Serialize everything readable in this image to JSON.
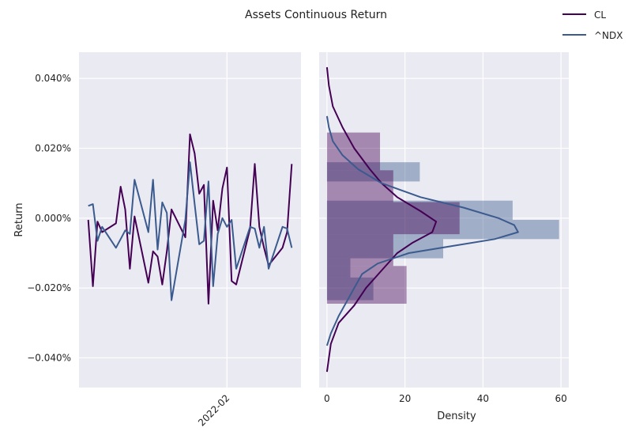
{
  "chart_data": {
    "title": "Assets Continuous Return",
    "legend": {
      "placement": "top-right",
      "entries": [
        {
          "label": "CL",
          "color": "#440154"
        },
        {
          "label": "^NDX",
          "color": "#3b5b8e"
        }
      ]
    },
    "colors": {
      "axes_bg": "#eaeaf2",
      "grid": "#ffffff",
      "CL": "#440154",
      "NDX": "#3b5b8e"
    },
    "charts": [
      {
        "type": "line",
        "xlabel": "",
        "ylabel": "Return",
        "x_tick_labels": [
          {
            "label": "2022-02",
            "index": 30
          }
        ],
        "y_ticks": [
          {
            "value": 0.04,
            "label": "0.040%"
          },
          {
            "value": 0.02,
            "label": "0.020%"
          },
          {
            "value": 0.0,
            "label": "0.000%"
          },
          {
            "value": -0.02,
            "label": "−0.020%"
          },
          {
            "value": -0.04,
            "label": "−0.040%"
          }
        ],
        "ylim": [
          -0.0485,
          0.0475
        ],
        "grid": true,
        "x_index_range": [
          -2,
          46
        ],
        "series": [
          {
            "name": "CL",
            "x": [
              0,
              1,
              2,
              3,
              6,
              7,
              8,
              9,
              10,
              13,
              14,
              15,
              16,
              17,
              18,
              21,
              22,
              23,
              24,
              25,
              26,
              27,
              28,
              29,
              30,
              31,
              32,
              35,
              36,
              37,
              38,
              39,
              42,
              43,
              44
            ],
            "values": [
              -0.0005,
              -0.0195,
              -0.001,
              -0.004,
              -0.0015,
              0.009,
              0.0025,
              -0.0145,
              0.0005,
              -0.0185,
              -0.0095,
              -0.011,
              -0.019,
              -0.0095,
              0.0025,
              -0.0055,
              0.024,
              0.0185,
              0.007,
              0.0095,
              -0.0245,
              0.005,
              -0.0035,
              0.0085,
              0.0145,
              -0.018,
              -0.019,
              -0.003,
              0.0155,
              -0.0025,
              -0.0085,
              -0.0135,
              -0.0085,
              -0.004,
              0.0155
            ]
          },
          {
            "name": "^NDX",
            "x": [
              0,
              1,
              2,
              3,
              6,
              7,
              8,
              9,
              10,
              13,
              14,
              15,
              16,
              17,
              18,
              21,
              22,
              23,
              24,
              25,
              26,
              27,
              28,
              29,
              30,
              31,
              32,
              35,
              36,
              37,
              38,
              39,
              42,
              43,
              44
            ],
            "values": [
              0.0035,
              0.004,
              -0.0065,
              -0.0025,
              -0.0085,
              -0.006,
              -0.0035,
              -0.0045,
              0.011,
              -0.004,
              0.011,
              -0.009,
              0.0045,
              0.0015,
              -0.0235,
              -0.0005,
              0.016,
              0.004,
              -0.0075,
              -0.0065,
              0.0105,
              -0.0195,
              -0.0045,
              0.0,
              -0.0025,
              -0.0005,
              -0.0145,
              -0.0025,
              -0.003,
              -0.0085,
              -0.0025,
              -0.0145,
              -0.0025,
              -0.003,
              -0.0085
            ]
          }
        ]
      },
      {
        "type": "histogram",
        "xlabel": "Density",
        "ylabel": "",
        "orientation": "horizontal",
        "xlim": [
          -2,
          62
        ],
        "x_ticks": [
          0,
          20,
          40,
          60
        ],
        "grid": true,
        "series": [
          {
            "name": "CL",
            "color": "#440154",
            "bins": [
              {
                "from": 0.0137,
                "to": 0.0245,
                "density": 13.6
              },
              {
                "from": 0.0046,
                "to": 0.0137,
                "density": 17.0
              },
              {
                "from": -0.0046,
                "to": 0.0046,
                "density": 34.0
              },
              {
                "from": -0.0137,
                "to": -0.0046,
                "density": 17.0
              },
              {
                "from": -0.0245,
                "to": -0.0137,
                "density": 20.4
              }
            ],
            "kde": [
              [
                0.0432,
                0
              ],
              [
                0.038,
                0.5
              ],
              [
                0.032,
                1.5
              ],
              [
                0.026,
                4
              ],
              [
                0.02,
                7
              ],
              [
                0.014,
                11
              ],
              [
                0.01,
                14
              ],
              [
                0.006,
                18
              ],
              [
                0.002,
                24
              ],
              [
                -0.001,
                28
              ],
              [
                -0.004,
                27
              ],
              [
                -0.007,
                22
              ],
              [
                -0.01,
                18
              ],
              [
                -0.015,
                14
              ],
              [
                -0.02,
                10
              ],
              [
                -0.025,
                7
              ],
              [
                -0.03,
                3
              ],
              [
                -0.036,
                1
              ],
              [
                -0.044,
                0
              ]
            ]
          },
          {
            "name": "^NDX",
            "color": "#3b5b8e",
            "bins": [
              {
                "from": 0.0105,
                "to": 0.016,
                "density": 23.8
              },
              {
                "from": 0.005,
                "to": 0.0105,
                "density": 0.0
              },
              {
                "from": -0.0005,
                "to": 0.005,
                "density": 47.6
              },
              {
                "from": -0.006,
                "to": -0.0005,
                "density": 59.5
              },
              {
                "from": -0.0115,
                "to": -0.006,
                "density": 29.8
              },
              {
                "from": -0.017,
                "to": -0.0115,
                "density": 6.0
              },
              {
                "from": -0.0235,
                "to": -0.017,
                "density": 11.9
              }
            ],
            "kde": [
              [
                0.0292,
                0
              ],
              [
                0.026,
                0.5
              ],
              [
                0.022,
                1.5
              ],
              [
                0.018,
                4
              ],
              [
                0.014,
                8
              ],
              [
                0.01,
                14
              ],
              [
                0.006,
                24
              ],
              [
                0.003,
                35
              ],
              [
                0.0,
                44
              ],
              [
                -0.002,
                48
              ],
              [
                -0.004,
                49
              ],
              [
                -0.006,
                43
              ],
              [
                -0.008,
                32
              ],
              [
                -0.01,
                21
              ],
              [
                -0.013,
                13
              ],
              [
                -0.016,
                9
              ],
              [
                -0.02,
                7
              ],
              [
                -0.024,
                5
              ],
              [
                -0.028,
                3
              ],
              [
                -0.033,
                1
              ],
              [
                -0.0365,
                0
              ]
            ]
          }
        ]
      }
    ]
  }
}
